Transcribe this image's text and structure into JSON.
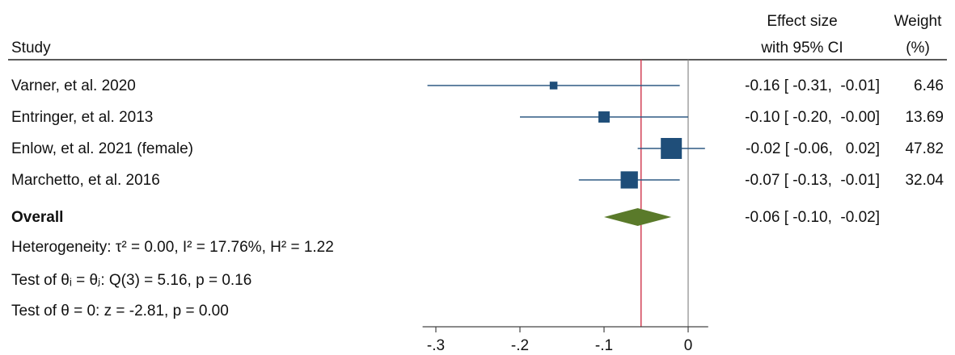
{
  "header": {
    "study": "Study",
    "effect_line1": "Effect size",
    "effect_line2": "with 95% CI",
    "weight_line1": "Weight",
    "weight_line2": "(%)"
  },
  "chart_data": {
    "type": "forest",
    "xlim": [
      -0.31,
      0.02
    ],
    "ticks": [
      -0.3,
      -0.2,
      -0.1,
      0
    ],
    "tick_labels": [
      "-.3",
      "-.2",
      "-.1",
      "0"
    ],
    "null_line": 0,
    "overall_line": -0.056,
    "colors": {
      "marker": "#1f4e79",
      "ci_line": "#2e5a84",
      "diamond": "#5a7a2a",
      "overall_line": "#d0344a",
      "null_line": "#888888",
      "axis": "#444444"
    },
    "studies": [
      {
        "label": "Varner, et al. 2020",
        "es": -0.16,
        "lo": -0.31,
        "hi": -0.01,
        "weight": 6.46,
        "ci_text": "-0.16 [ -0.31,  -0.01]",
        "weight_text": "6.46"
      },
      {
        "label": "Entringer, et al. 2013",
        "es": -0.1,
        "lo": -0.2,
        "hi": -0.0,
        "weight": 13.69,
        "ci_text": "-0.10 [ -0.20,  -0.00]",
        "weight_text": "13.69"
      },
      {
        "label": "Enlow, et al. 2021 (female)",
        "es": -0.02,
        "lo": -0.06,
        "hi": 0.02,
        "weight": 47.82,
        "ci_text": "-0.02 [ -0.06,   0.02]",
        "weight_text": "47.82"
      },
      {
        "label": "Marchetto, et al. 2016",
        "es": -0.07,
        "lo": -0.13,
        "hi": -0.01,
        "weight": 32.04,
        "ci_text": "-0.07 [ -0.13,  -0.01]",
        "weight_text": "32.04"
      }
    ],
    "overall": {
      "label": "Overall",
      "es": -0.06,
      "lo": -0.1,
      "hi": -0.02,
      "ci_text": "-0.06 [ -0.10,  -0.02]"
    },
    "footnotes": {
      "heterogeneity": "Heterogeneity: τ² = 0.00, I² = 17.76%, H² = 1.22",
      "test_equal": "Test of θᵢ = θⱼ: Q(3) = 5.16, p = 0.16",
      "test_zero": "Test of θ = 0: z = -2.81, p = 0.00"
    }
  }
}
